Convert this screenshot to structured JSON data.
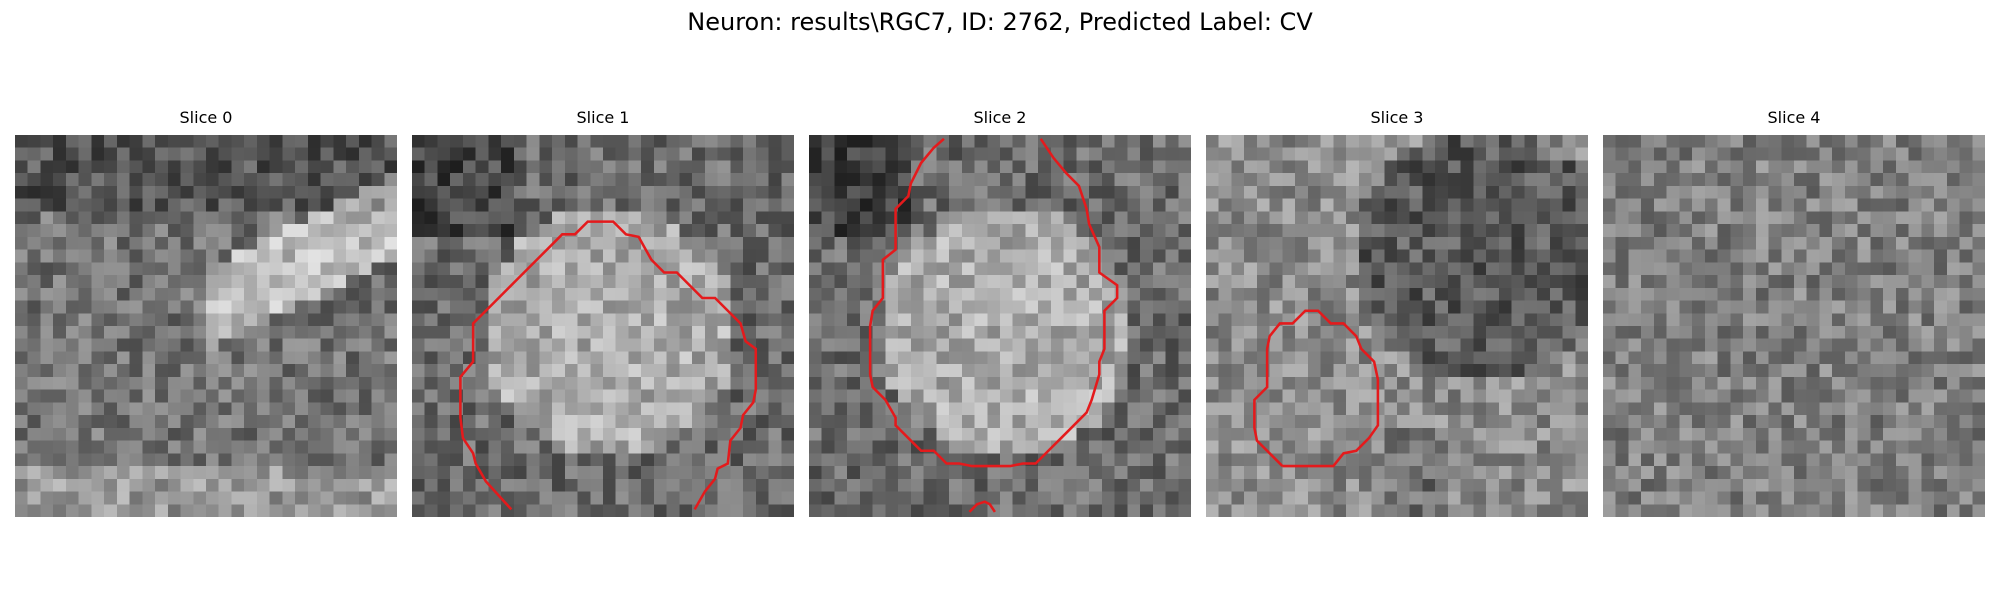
{
  "figure": {
    "title": "Neuron: results\\RGC7, ID: 2762, Predicted Label: CV"
  },
  "panels": [
    {
      "title": "Slice 0",
      "contours": 0,
      "seed": 11,
      "tone": "dark-top-bright-band"
    },
    {
      "title": "Slice 1",
      "contours": 1,
      "seed": 23,
      "tone": "bright-center"
    },
    {
      "title": "Slice 2",
      "contours": 2,
      "seed": 37,
      "tone": "bright-center"
    },
    {
      "title": "Slice 3",
      "contours": 1,
      "seed": 41,
      "tone": "dark-right"
    },
    {
      "title": "Slice 4",
      "contours": 0,
      "seed": 53,
      "tone": "uniform"
    }
  ],
  "colors": {
    "contour": "#e41a1c",
    "background": "#ffffff"
  }
}
